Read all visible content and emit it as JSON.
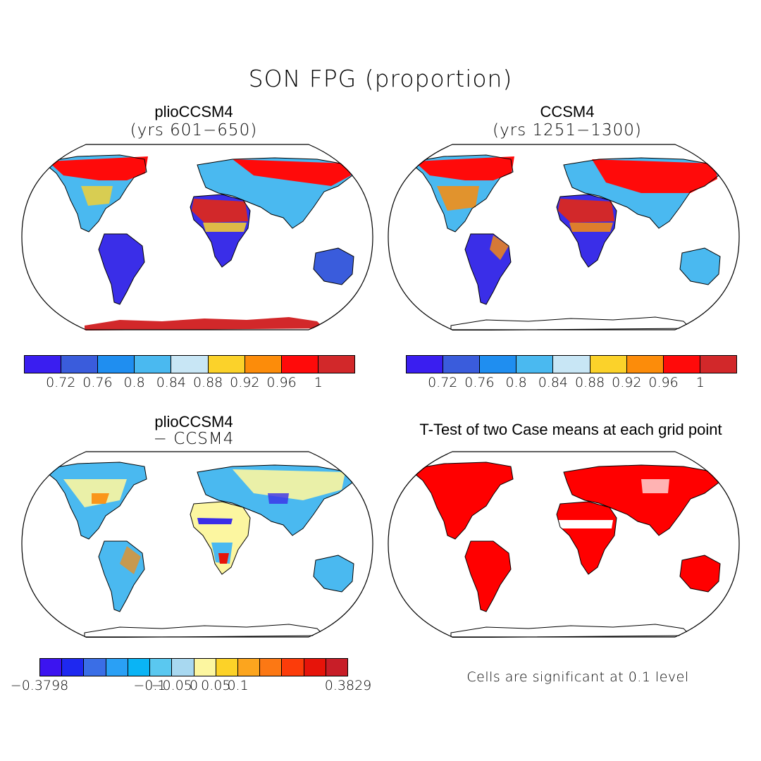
{
  "figure_title": "SON FPG (proportion)",
  "panels": [
    {
      "title": "plioCCSM4",
      "subtitle": "(yrs 601−650)"
    },
    {
      "title": "CCSM4",
      "subtitle": "(yrs 1251−1300)"
    },
    {
      "title": "plioCCSM4",
      "subtitle": "− CCSM4"
    },
    {
      "title": "T-Test of two Case means at each grid point",
      "subtitle": ""
    }
  ],
  "colorbar_abs": {
    "colors": [
      "#3a1ef0",
      "#3a5cdc",
      "#1f8ef0",
      "#4ab9f0",
      "#c8e6f5",
      "#fbd22a",
      "#fc8c0a",
      "#ff0a0a",
      "#d2282a"
    ],
    "tick_labels": [
      "0.72",
      "0.76",
      "0.8",
      "0.84",
      "0.88",
      "0.92",
      "0.96",
      "1"
    ]
  },
  "colorbar_diff": {
    "colors": [
      "#3c14f0",
      "#1e28f0",
      "#3a6ee6",
      "#2aa0f5",
      "#0ab4f5",
      "#5ac8f0",
      "#a8d8f0",
      "#fcf6a0",
      "#fcd228",
      "#fca51e",
      "#fc7814",
      "#fc3c0a",
      "#e6140a",
      "#c81e28"
    ],
    "tick_labels": [
      "−0.3798",
      "−0.1",
      "−0.05",
      "0",
      "0.05",
      "0.1",
      "0.3829"
    ]
  },
  "significance_note": "Cells are significant at 0.1 level",
  "map_colors": {
    "coast": "#000000",
    "significant": "#ff0000",
    "abs_blue": "#3a2ee8",
    "abs_lightblue": "#4ab9f0",
    "abs_red": "#ff0a0a",
    "abs_darkred": "#d2282a",
    "abs_yellow": "#fbd22a",
    "diff_blue": "#4ab9f0",
    "diff_yellow": "#fcf6a0",
    "diff_orange": "#fc8c0a",
    "diff_red": "#e6140a"
  }
}
